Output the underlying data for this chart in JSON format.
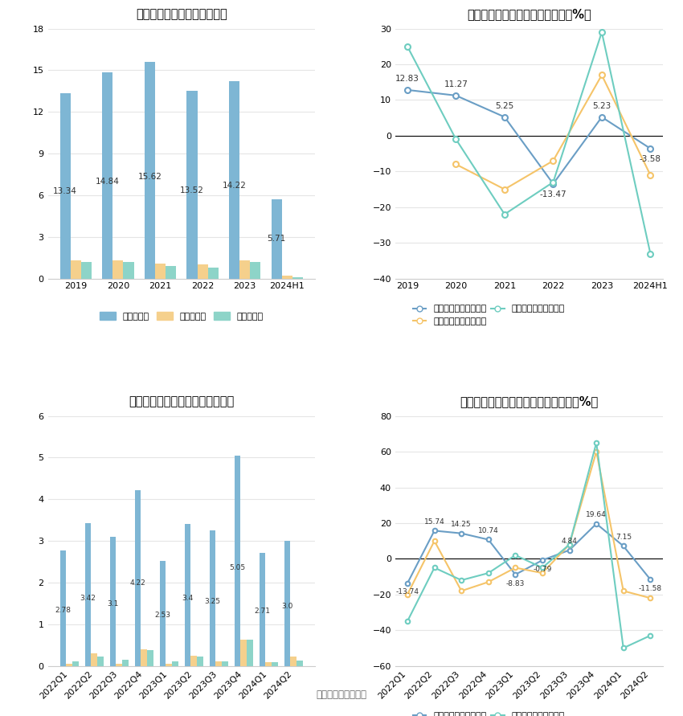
{
  "title1": "历年营收、净利情况（亿元）",
  "title2": "历年营收、净利同比增长率情况（%）",
  "title3": "营收、净利季度变动情况（亿元）",
  "title4": "营收、净利同比增长率季度变动情况（%）",
  "source": "数据来源：恒生聚源",
  "annual_years": [
    "2019",
    "2020",
    "2021",
    "2022",
    "2023",
    "2024H1"
  ],
  "annual_revenue": [
    13.34,
    14.84,
    15.62,
    13.52,
    14.22,
    5.71
  ],
  "annual_net_profit": [
    1.3,
    1.3,
    1.1,
    1.0,
    1.3,
    0.2
  ],
  "annual_deducted_profit": [
    1.2,
    1.2,
    0.9,
    0.8,
    1.2,
    0.1
  ],
  "annual_revenue_growth": [
    12.83,
    11.27,
    5.25,
    -13.47,
    5.23,
    -3.58
  ],
  "annual_net_profit_growth": [
    null,
    -8.0,
    -15.0,
    -7.0,
    17.0,
    -11.0
  ],
  "annual_deducted_growth": [
    25.0,
    -1.0,
    -22.0,
    -13.0,
    29.0,
    -33.0
  ],
  "quarterly_labels": [
    "2022Q1",
    "2022Q2",
    "2022Q3",
    "2022Q4",
    "2023Q1",
    "2023Q2",
    "2023Q3",
    "2023Q4",
    "2024Q1",
    "2024Q2"
  ],
  "quarterly_revenue": [
    2.78,
    3.42,
    3.1,
    4.22,
    2.53,
    3.4,
    3.25,
    5.05,
    2.71,
    3.0
  ],
  "quarterly_net_profit": [
    0.05,
    0.3,
    0.05,
    0.4,
    0.05,
    0.25,
    0.1,
    0.63,
    0.08,
    0.22
  ],
  "quarterly_deducted_profit": [
    0.1,
    0.22,
    0.14,
    0.37,
    0.1,
    0.22,
    0.1,
    0.62,
    0.08,
    0.12
  ],
  "quarterly_revenue_growth": [
    -13.74,
    15.74,
    14.25,
    10.74,
    -8.83,
    -0.79,
    4.84,
    19.64,
    7.15,
    -11.58
  ],
  "quarterly_net_profit_growth": [
    -20.0,
    10.0,
    -18.0,
    -13.0,
    -5.0,
    -8.0,
    8.0,
    60.0,
    -18.0,
    -22.0
  ],
  "quarterly_deducted_growth": [
    -35.0,
    -5.0,
    -12.0,
    -8.0,
    2.0,
    -5.0,
    8.0,
    65.0,
    -50.0,
    -43.0
  ],
  "color_blue": "#7EB6D4",
  "color_yellow": "#F5D08C",
  "color_cyan": "#8DD4C8",
  "color_line_blue": "#6A9EC5",
  "color_line_yellow": "#F5C469",
  "color_line_cyan": "#6ECDC0",
  "bg_color": "#FFFFFF",
  "grid_color": "#E5E5E5",
  "legend1_labels": [
    "营业总收入",
    "归母净利润",
    "扣非净利润"
  ],
  "legend2_labels": [
    "营业总收入同比增长率",
    "归母净利润同比增长率",
    "扣非净利润同比增长率"
  ]
}
